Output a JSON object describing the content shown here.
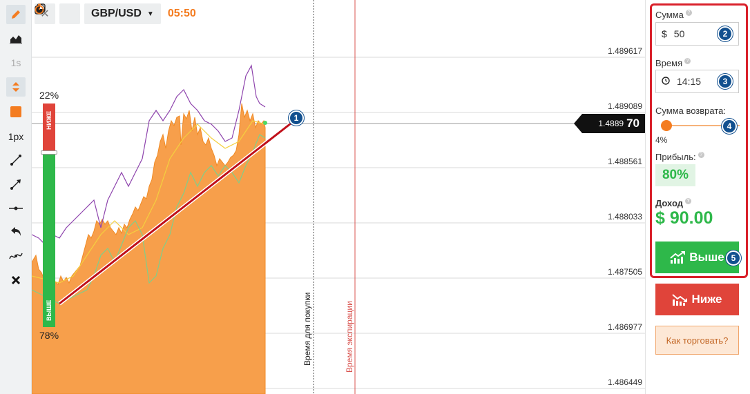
{
  "toolbar": {
    "tools": [
      "pencil-icon",
      "area-chart-icon",
      "1s",
      "expand-icon",
      "color-swatch",
      "1px",
      "line-tool-icon",
      "arrow-line-icon",
      "horizontal-line-icon",
      "undo-icon",
      "wave-icon",
      "delete-icon"
    ],
    "timeframe_label": "1s",
    "line_width_label": "1px",
    "accent_color": "#f47c20"
  },
  "header": {
    "pair": "GBP/USD",
    "timer": "05:50"
  },
  "chart": {
    "price_labels": [
      "1.489617",
      "1.489089",
      "1.488561",
      "1.488033",
      "1.487505",
      "1.486977",
      "1.486449"
    ],
    "current_price_main": "1.4889",
    "current_price_tail": "70",
    "purchase_time_label": "Время для покупки",
    "expiration_label": "Время экспирации",
    "sentiment": {
      "down_label": "НИЖЕ",
      "up_label": "ВЫШЕ",
      "down_pct": "22%",
      "up_pct": "78%",
      "down_share": 0.22
    },
    "markers": [
      "1",
      "2",
      "3",
      "4",
      "5"
    ]
  },
  "panel": {
    "amount_label": "Сумма",
    "amount_value": "50",
    "time_label": "Время",
    "time_value": "14:15",
    "refund_label": "Сумма возврата:",
    "refund_pct": "4%",
    "profit_label": "Прибыль:",
    "profit_value": "80%",
    "income_label": "Доход",
    "income_value": "$ 90.00",
    "up_button": "Выше",
    "down_button": "Ниже",
    "howto_button": "Как торговать?",
    "colors": {
      "up": "#2eb84a",
      "down": "#e0443a",
      "highlight": "#d9202a"
    }
  }
}
